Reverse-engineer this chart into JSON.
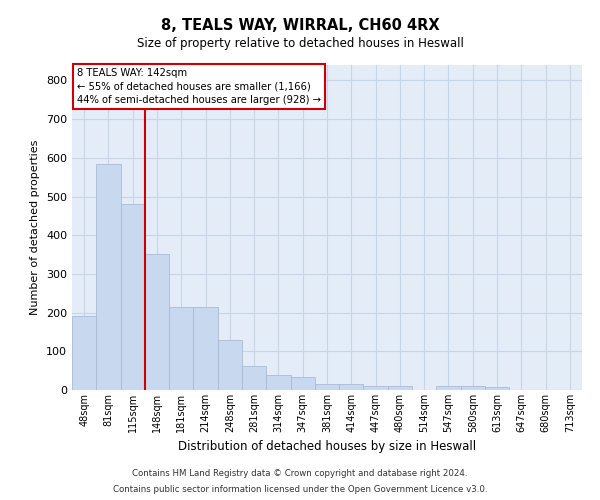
{
  "title1": "8, TEALS WAY, WIRRAL, CH60 4RX",
  "title2": "Size of property relative to detached houses in Heswall",
  "xlabel": "Distribution of detached houses by size in Heswall",
  "ylabel": "Number of detached properties",
  "categories": [
    "48sqm",
    "81sqm",
    "115sqm",
    "148sqm",
    "181sqm",
    "214sqm",
    "248sqm",
    "281sqm",
    "314sqm",
    "347sqm",
    "381sqm",
    "414sqm",
    "447sqm",
    "480sqm",
    "514sqm",
    "547sqm",
    "580sqm",
    "613sqm",
    "647sqm",
    "680sqm",
    "713sqm"
  ],
  "values": [
    192,
    585,
    480,
    352,
    214,
    214,
    130,
    63,
    40,
    33,
    15,
    15,
    10,
    10,
    0,
    10,
    10,
    7,
    0,
    0,
    0
  ],
  "bar_color": "#c8d8ee",
  "bar_edge_color": "#aabbd4",
  "vline_color": "#cc0000",
  "annotation_line1": "8 TEALS WAY: 142sqm",
  "annotation_line2": "← 55% of detached houses are smaller (1,166)",
  "annotation_line3": "44% of semi-detached houses are larger (928) →",
  "annotation_box_color": "white",
  "annotation_box_edge_color": "#cc0000",
  "grid_color": "#c8d4e8",
  "background_color": "#e4ecf7",
  "footer1": "Contains HM Land Registry data © Crown copyright and database right 2024.",
  "footer2": "Contains public sector information licensed under the Open Government Licence v3.0.",
  "ylim": [
    0,
    840
  ],
  "yticks": [
    0,
    100,
    200,
    300,
    400,
    500,
    600,
    700,
    800
  ],
  "vline_index": 2.5
}
